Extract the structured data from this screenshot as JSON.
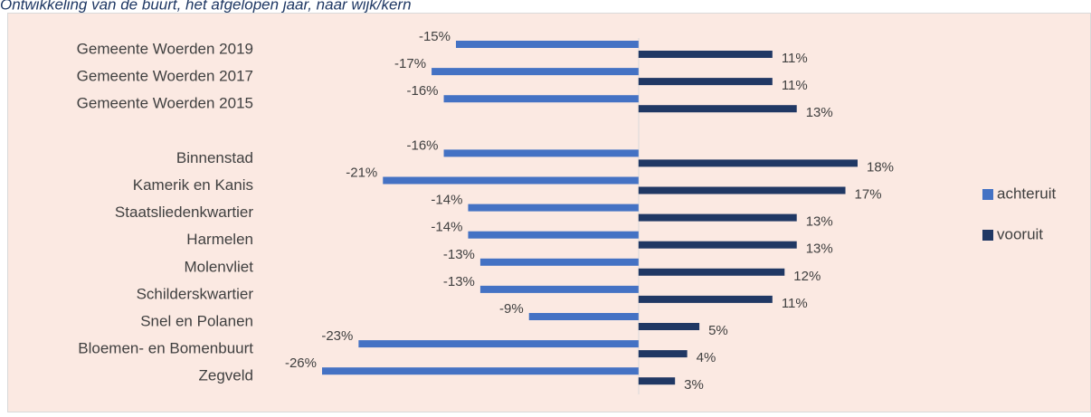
{
  "chart_data": {
    "type": "diverging-bar",
    "title": "Ontwikkeling van de buurt, het afgelopen jaar, naar wijk/kern",
    "categories": [
      "Gemeente Woerden 2019",
      "Gemeente Woerden 2017",
      "Gemeente Woerden 2015",
      null,
      "Binnenstad",
      "Kamerik en Kanis",
      "Staatsliedenkwartier",
      "Harmelen",
      "Molenvliet",
      "Schilderskwartier",
      "Snel en Polanen",
      "Bloemen- en Bomenbuurt",
      "Zegveld"
    ],
    "series": [
      {
        "name": "achteruit",
        "color": "#4472c4",
        "values": [
          -15,
          -17,
          -16,
          null,
          -16,
          -21,
          -14,
          -14,
          -13,
          -13,
          -9,
          -23,
          -26
        ],
        "value_labels": [
          "-15%",
          "-17%",
          "-16%",
          null,
          "-16%",
          "-21%",
          "-14%",
          "-14%",
          "-13%",
          "-13%",
          "-9%",
          "-23%",
          "-26%"
        ]
      },
      {
        "name": "vooruit",
        "color": "#203864",
        "values": [
          11,
          11,
          13,
          null,
          18,
          17,
          13,
          13,
          12,
          11,
          5,
          4,
          3
        ],
        "value_labels": [
          "11%",
          "11%",
          "13%",
          null,
          "18%",
          "17%",
          "13%",
          "13%",
          "12%",
          "11%",
          "5%",
          "4%",
          "3%"
        ]
      }
    ],
    "legend": "right"
  }
}
